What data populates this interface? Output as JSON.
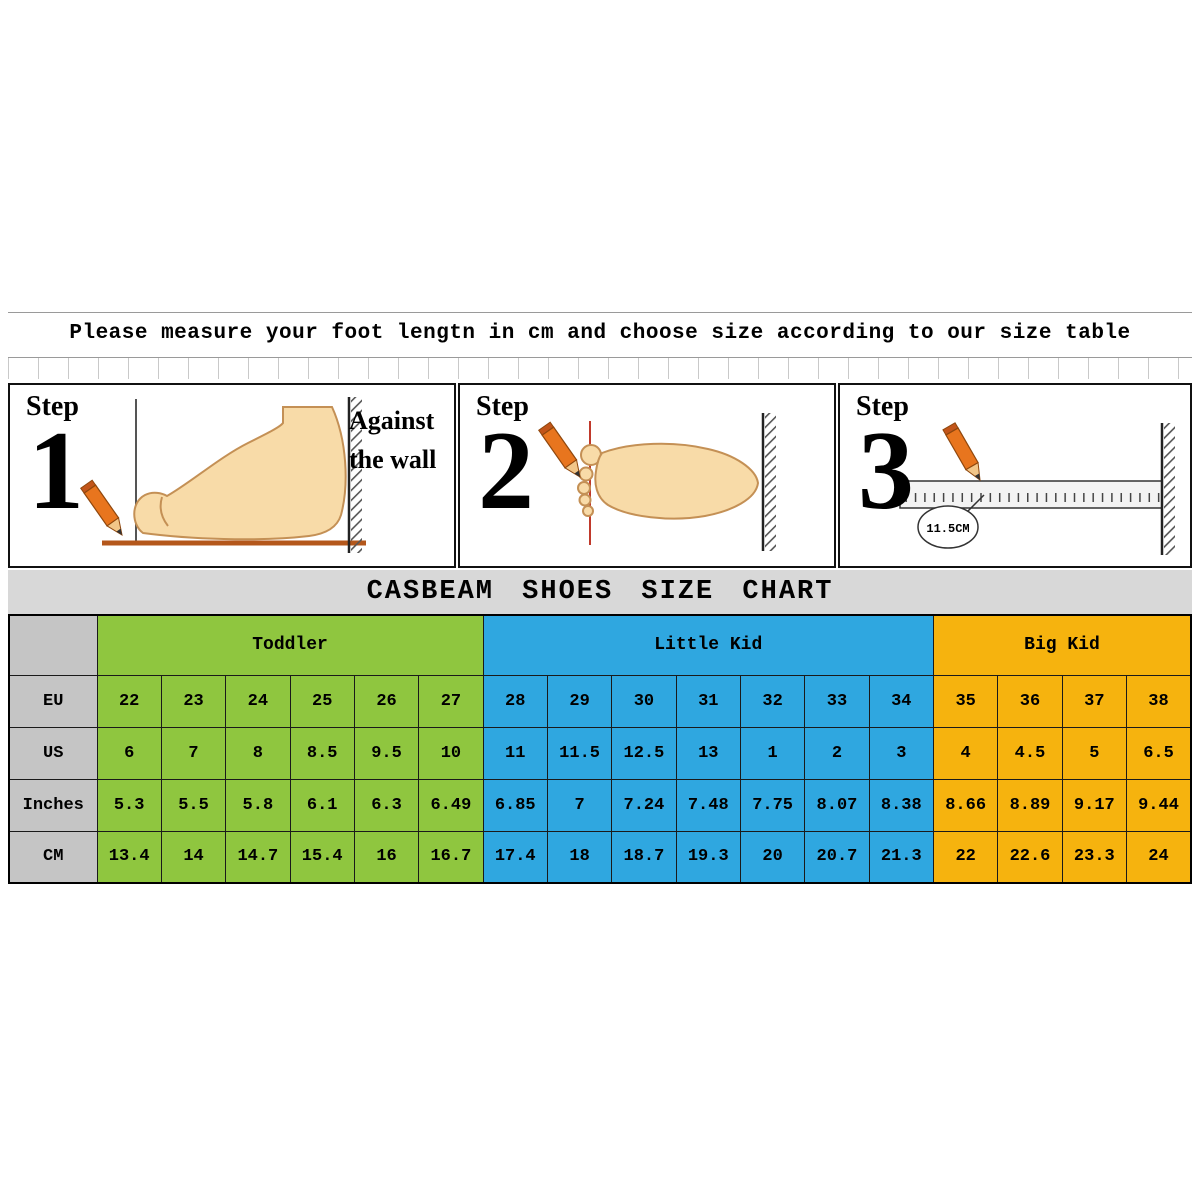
{
  "banner": {
    "text": "Please measure your foot lengtn in cm and choose size according to our size table"
  },
  "steps": [
    {
      "label": "Step",
      "number": "1",
      "wall_note_line1": "Against",
      "wall_note_line2": "the wall"
    },
    {
      "label": "Step",
      "number": "2"
    },
    {
      "label": "Step",
      "number": "3",
      "measurement": "11.5CM"
    }
  ],
  "chart_data": {
    "type": "table",
    "title": "CASBEAM SHOES SIZE CHART",
    "label_column_color": "#C5C5C5",
    "column_groups": [
      {
        "name": "Toddler",
        "span": 6,
        "color": "#8FC63F"
      },
      {
        "name": "Little Kid",
        "span": 7,
        "color": "#2FA7E0"
      },
      {
        "name": "Big Kid",
        "span": 4,
        "color": "#F6B30E"
      }
    ],
    "rows": [
      {
        "label": "EU",
        "values": [
          "22",
          "23",
          "24",
          "25",
          "26",
          "27",
          "28",
          "29",
          "30",
          "31",
          "32",
          "33",
          "34",
          "35",
          "36",
          "37",
          "38"
        ]
      },
      {
        "label": "US",
        "values": [
          "6",
          "7",
          "8",
          "8.5",
          "9.5",
          "10",
          "11",
          "11.5",
          "12.5",
          "13",
          "1",
          "2",
          "3",
          "4",
          "4.5",
          "5",
          "6.5"
        ]
      },
      {
        "label": "Inches",
        "values": [
          "5.3",
          "5.5",
          "5.8",
          "6.1",
          "6.3",
          "6.49",
          "6.85",
          "7",
          "7.24",
          "7.48",
          "7.75",
          "8.07",
          "8.38",
          "8.66",
          "8.89",
          "9.17",
          "9.44"
        ]
      },
      {
        "label": "CM",
        "values": [
          "13.4",
          "14",
          "14.7",
          "15.4",
          "16",
          "16.7",
          "17.4",
          "18",
          "18.7",
          "19.3",
          "20",
          "20.7",
          "21.3",
          "22",
          "22.6",
          "23.3",
          "24"
        ]
      }
    ]
  }
}
